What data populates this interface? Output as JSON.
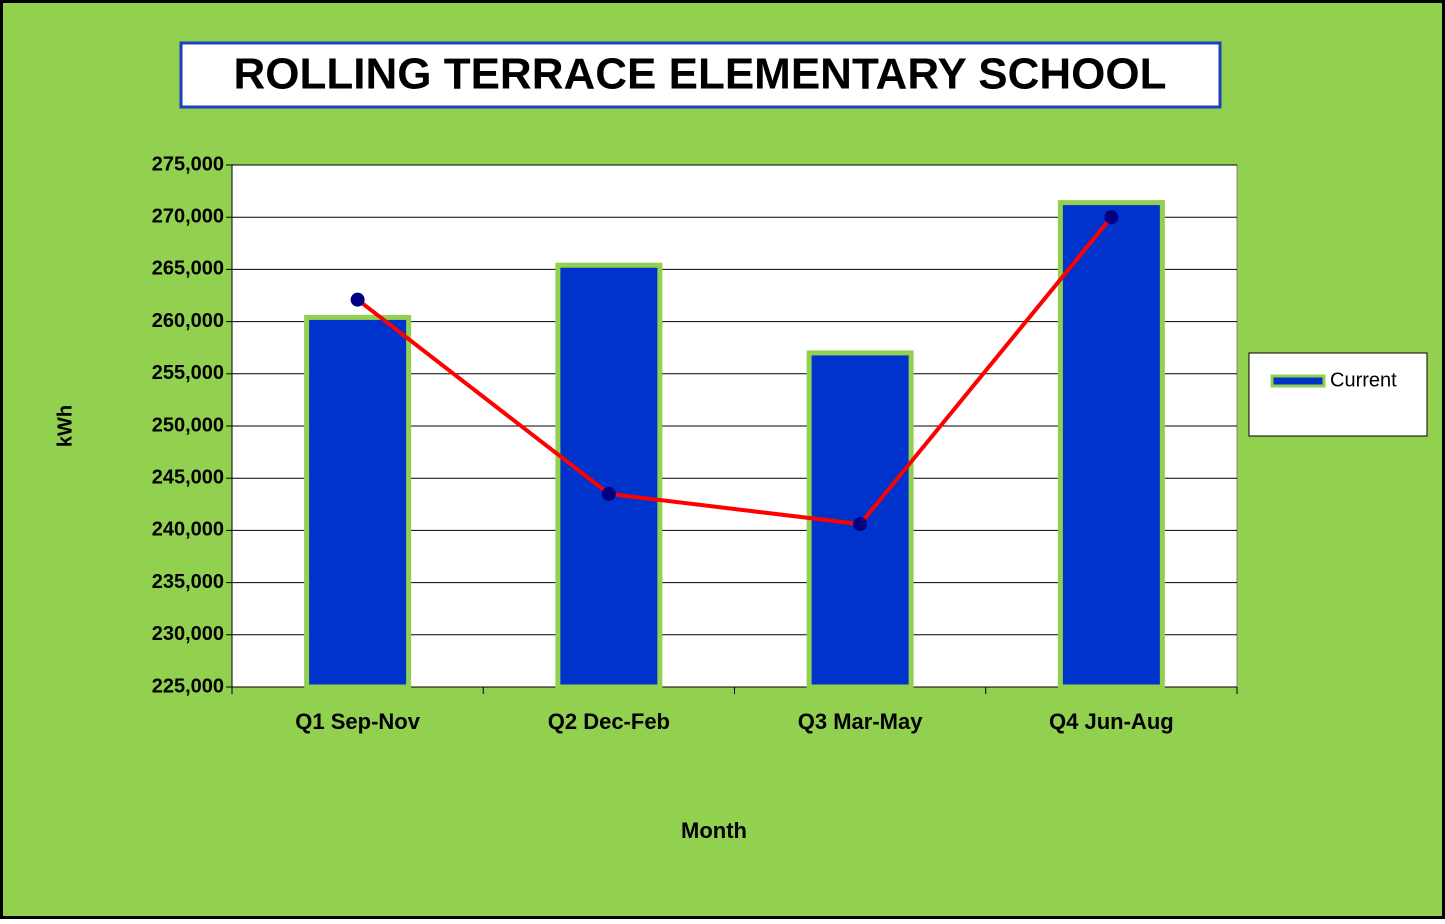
{
  "chart_data": {
    "type": "bar",
    "title": "ROLLING TERRACE ELEMENTARY SCHOOL",
    "x_label": "Month",
    "y_label": "kWh",
    "categories": [
      "Q1 Sep-Nov",
      "Q2 Dec-Feb",
      "Q3 Mar-May",
      "Q4 Jun-Aug"
    ],
    "series": [
      {
        "name": "Current",
        "type": "bar",
        "color": "#0033cc",
        "border_color": "#92d050",
        "values": [
          260400,
          265400,
          257000,
          271400
        ]
      },
      {
        "type": "line",
        "color": "#ff0000",
        "marker_color": "#000080",
        "values": [
          262100,
          243500,
          240600,
          270000
        ]
      }
    ],
    "ylim": [
      225000,
      275000
    ],
    "yticks": [
      {
        "value": 225000,
        "label": "225,000"
      },
      {
        "value": 230000,
        "label": "230,000"
      },
      {
        "value": 235000,
        "label": "235,000"
      },
      {
        "value": 240000,
        "label": "240,000"
      },
      {
        "value": 245000,
        "label": "245,000"
      },
      {
        "value": 250000,
        "label": "250,000"
      },
      {
        "value": 255000,
        "label": "255,000"
      },
      {
        "value": 260000,
        "label": "260,000"
      },
      {
        "value": 265000,
        "label": "265,000"
      },
      {
        "value": 270000,
        "label": "270,000"
      },
      {
        "value": 275000,
        "label": "275,000"
      }
    ],
    "grid": true,
    "legend": "right",
    "background": "#92d050"
  }
}
